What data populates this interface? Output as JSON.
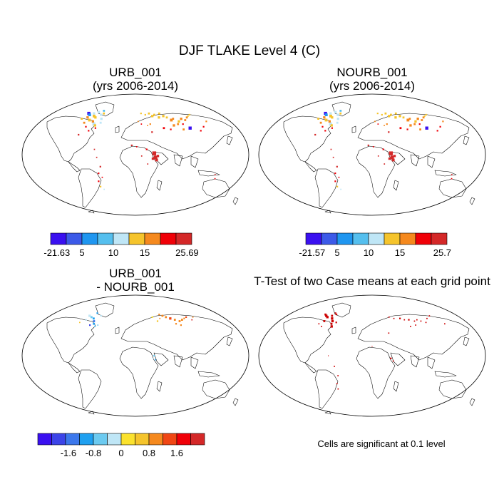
{
  "figure": {
    "title": "DJF TLAKE Level 4 (C)"
  },
  "panels": [
    {
      "id": "urb",
      "title_line1": "URB_001",
      "title_line2": "(yrs 2006-2014)",
      "kind": "field"
    },
    {
      "id": "nourb",
      "title_line1": "NOURB_001",
      "title_line2": "(yrs 2006-2014)",
      "kind": "field"
    },
    {
      "id": "diff",
      "title_line1": "URB_001",
      "title_line2": "- NOURB_001",
      "kind": "difference"
    },
    {
      "id": "ttest",
      "title_line1": "T-Test of two Case means at each grid point",
      "kind": "significance"
    }
  ],
  "colorbars": [
    {
      "id": "cb-urb",
      "colors": [
        "#3a10f0",
        "#3c5ae8",
        "#1f96f0",
        "#55bfee",
        "#bfe6f6",
        "#f5c42c",
        "#f5891e",
        "#f00008",
        "#d42828"
      ],
      "labels": [
        "-21.63",
        "5",
        "10",
        "15",
        "25.69"
      ]
    },
    {
      "id": "cb-nourb",
      "colors": [
        "#3a10f0",
        "#3c5ae8",
        "#1f96f0",
        "#55bfee",
        "#bfe6f6",
        "#f5c42c",
        "#f5891e",
        "#f00008",
        "#d42828"
      ],
      "labels": [
        "-21.57",
        "5",
        "10",
        "15",
        "25.7"
      ]
    },
    {
      "id": "cb-diff",
      "colors": [
        "#3a10f0",
        "#3c44e8",
        "#3c78ec",
        "#1fa0f0",
        "#6ccaf0",
        "#bfe6f6",
        "#fbe22e",
        "#f5c42c",
        "#f5891e",
        "#f04614",
        "#f00008",
        "#d42828"
      ],
      "labels": [
        "-1.6",
        "-0.8",
        "0",
        "0.8",
        "1.6"
      ]
    }
  ],
  "significance_note": "Cells are significant at 0.1 level",
  "colors": {
    "coast": "#000000",
    "significant": "#cc0000"
  }
}
